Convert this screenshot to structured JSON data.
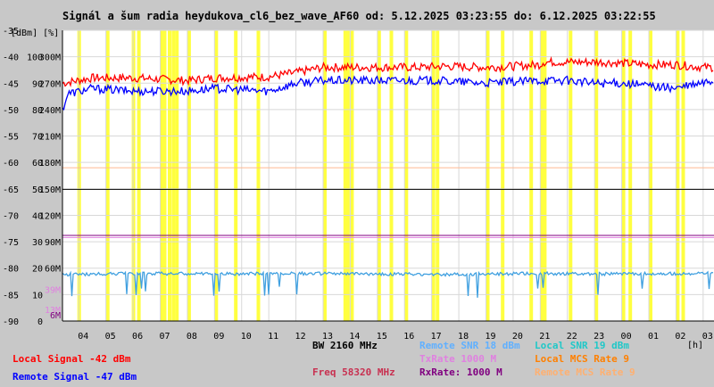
{
  "chart_data": {
    "type": "line",
    "title": "Signál a šum radia heydukova_cl6_bez_wave_AF60 od: 5.12.2025 03:23:55 do: 6.12.2025 03:22:55",
    "y_unit_label": "[dBm] [%]",
    "x_unit_label": "[h]",
    "x_range_hours": [
      3.4,
      27.4
    ],
    "y_range_dbm": [
      -90,
      -35
    ],
    "x_ticks": [
      {
        "h": 4,
        "label": "04"
      },
      {
        "h": 5,
        "label": "05"
      },
      {
        "h": 6,
        "label": "06"
      },
      {
        "h": 7,
        "label": "07"
      },
      {
        "h": 8,
        "label": "08"
      },
      {
        "h": 9,
        "label": "09"
      },
      {
        "h": 10,
        "label": "10"
      },
      {
        "h": 11,
        "label": "11"
      },
      {
        "h": 12,
        "label": "12"
      },
      {
        "h": 13,
        "label": "13"
      },
      {
        "h": 14,
        "label": "14"
      },
      {
        "h": 15,
        "label": "15"
      },
      {
        "h": 16,
        "label": "16"
      },
      {
        "h": 17,
        "label": "17"
      },
      {
        "h": 18,
        "label": "18"
      },
      {
        "h": 19,
        "label": "19"
      },
      {
        "h": 20,
        "label": "20"
      },
      {
        "h": 21,
        "label": "21"
      },
      {
        "h": 22,
        "label": "22"
      },
      {
        "h": 23,
        "label": "23"
      },
      {
        "h": 24,
        "label": "00"
      },
      {
        "h": 25,
        "label": "01"
      },
      {
        "h": 26,
        "label": "02"
      },
      {
        "h": 27,
        "label": "03"
      }
    ],
    "y_ticks": [
      {
        "dbm": -35,
        "dbm_label": "-35",
        "pct": "",
        "rate": ""
      },
      {
        "dbm": -40,
        "dbm_label": "-40",
        "pct": "100",
        "rate": "300M"
      },
      {
        "dbm": -45,
        "dbm_label": "-45",
        "pct": "90",
        "rate": "270M"
      },
      {
        "dbm": -50,
        "dbm_label": "-50",
        "pct": "80",
        "rate": "240M"
      },
      {
        "dbm": -55,
        "dbm_label": "-55",
        "pct": "70",
        "rate": "210M"
      },
      {
        "dbm": -60,
        "dbm_label": "-60",
        "pct": "60",
        "rate": "180M"
      },
      {
        "dbm": -65,
        "dbm_label": "-65",
        "pct": "50",
        "rate": "150M"
      },
      {
        "dbm": -70,
        "dbm_label": "-70",
        "pct": "40",
        "rate": "120M"
      },
      {
        "dbm": -75,
        "dbm_label": "-75",
        "pct": "30",
        "rate": "90M"
      },
      {
        "dbm": -80,
        "dbm_label": "-80",
        "pct": "20",
        "rate": "60M"
      },
      {
        "dbm": -85,
        "dbm_label": "-85",
        "pct": "10",
        "rate": ""
      },
      {
        "dbm": -90,
        "dbm_label": "-90",
        "pct": "0",
        "rate": ""
      }
    ],
    "low_rate_labels": [
      {
        "dbm": -84,
        "text": "39M",
        "color": "#e080e0"
      },
      {
        "dbm": -87.8,
        "text": "13M",
        "color": "#e080e0"
      },
      {
        "dbm": -88.8,
        "text": "6M",
        "color": "#800080"
      }
    ],
    "reference_lines": [
      {
        "name": "Local SNR 19 dBm",
        "dbm": -61,
        "color": "#ffb890"
      },
      {
        "name": "level 50",
        "dbm": -65.1,
        "color": "#000000"
      },
      {
        "name": "RxRate 1000 M",
        "dbm": -73.8,
        "color": "#800080"
      },
      {
        "name": "TxRate 1000 M",
        "dbm": -74.2,
        "color": "#e080e0"
      }
    ],
    "yellow_bands_hours": [
      3.95,
      5.0,
      5.95,
      6.15,
      7.0,
      7.1,
      7.28,
      7.42,
      7.55,
      8.0,
      9.0,
      9.72,
      10.55,
      13.0,
      13.75,
      13.85,
      14.0,
      15.0,
      15.45,
      16.0,
      17.0,
      17.15,
      19.0,
      19.55,
      20.6,
      21.0,
      21.1,
      22.05,
      23.0,
      24.0,
      24.25,
      25.0,
      26.0,
      26.2
    ],
    "series": [
      {
        "name": "Local Signal",
        "color": "#ff0000",
        "x": [
          3.4,
          4.5,
          6,
          8,
          9,
          11,
          12,
          13,
          13.6,
          15,
          16.6,
          17.4,
          19,
          20,
          21,
          21.1,
          22.5,
          23.2,
          25,
          26,
          27,
          27.4
        ],
        "y": [
          -45,
          -44,
          -44,
          -44.5,
          -44,
          -43.8,
          -43,
          -42,
          -42,
          -42,
          -42,
          -41.8,
          -42,
          -41.8,
          -41.5,
          -41,
          -41,
          -41,
          -41.5,
          -41.5,
          -42,
          -42
        ]
      },
      {
        "name": "Remote Signal",
        "color": "#0000ff",
        "x": [
          3.4,
          3.6,
          4.5,
          6,
          8,
          9,
          11,
          12,
          13,
          15,
          17,
          19,
          21,
          22,
          23,
          24,
          25,
          26,
          27,
          27.4
        ],
        "y": [
          -50,
          -47,
          -46,
          -46.5,
          -46.5,
          -46,
          -46.5,
          -45,
          -44.5,
          -44.5,
          -44.5,
          -45,
          -44.5,
          -44.5,
          -45,
          -45,
          -45.5,
          -46,
          -45,
          -44.5
        ]
      },
      {
        "name": "Remote SNR 18 dBm",
        "color": "#40a0e0",
        "x": [
          3.4,
          6,
          9,
          12,
          15,
          18,
          21,
          24,
          27.4
        ],
        "y": [
          -81.2,
          -81,
          -81.1,
          -81,
          -81.1,
          -81.2,
          -81,
          -81.1,
          -81
        ]
      }
    ],
    "info_labels": [
      {
        "text": "Local Signal -42 dBm",
        "color": "#ff0000"
      },
      {
        "text": "Remote Signal -47 dBm",
        "color": "#0000ff"
      },
      {
        "text": "BW 2160 MHz",
        "color": "#000000"
      },
      {
        "text": "Freq 58320 MHz",
        "color": "#c83050"
      },
      {
        "text": "Remote SNR 18 dBm",
        "color": "#60b0ff"
      },
      {
        "text": "TxRate 1000 M",
        "color": "#e080e0"
      },
      {
        "text": "RxRate: 1000 M",
        "color": "#800080"
      },
      {
        "text": "Local SNR 19 dBm",
        "color": "#20c8c8"
      },
      {
        "text": "Local MCS Rate 9",
        "color": "#ff8000"
      },
      {
        "text": "Remote MCS Rate 9",
        "color": "#ffb070"
      }
    ]
  }
}
